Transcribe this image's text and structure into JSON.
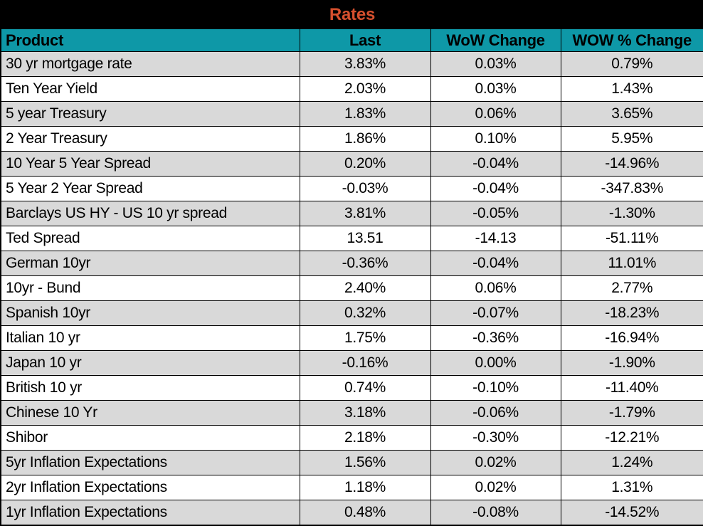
{
  "title": "Rates",
  "chart_data": {
    "type": "table",
    "title": "Rates",
    "columns": [
      "Product",
      "Last",
      "WoW Change",
      "WOW % Change"
    ],
    "rows": [
      [
        "30 yr mortgage rate",
        "3.83%",
        "0.03%",
        "0.79%"
      ],
      [
        "Ten Year Yield",
        "2.03%",
        "0.03%",
        "1.43%"
      ],
      [
        "5 year Treasury",
        "1.83%",
        "0.06%",
        "3.65%"
      ],
      [
        "2 Year Treasury",
        "1.86%",
        "0.10%",
        "5.95%"
      ],
      [
        "10 Year 5 Year Spread",
        "0.20%",
        "-0.04%",
        "-14.96%"
      ],
      [
        "5 Year 2 Year Spread",
        "-0.03%",
        "-0.04%",
        "-347.83%"
      ],
      [
        "Barclays US HY - US 10 yr spread",
        "3.81%",
        "-0.05%",
        "-1.30%"
      ],
      [
        "Ted Spread",
        "13.51",
        "-14.13",
        "-51.11%"
      ],
      [
        "German 10yr",
        "-0.36%",
        "-0.04%",
        "11.01%"
      ],
      [
        "10yr - Bund",
        "2.40%",
        "0.06%",
        "2.77%"
      ],
      [
        "Spanish 10yr",
        "0.32%",
        "-0.07%",
        "-18.23%"
      ],
      [
        "Italian 10 yr",
        "1.75%",
        "-0.36%",
        "-16.94%"
      ],
      [
        "Japan 10 yr",
        "-0.16%",
        "0.00%",
        "-1.90%"
      ],
      [
        "British 10 yr",
        "0.74%",
        "-0.10%",
        "-11.40%"
      ],
      [
        "Chinese 10 Yr",
        "3.18%",
        "-0.06%",
        "-1.79%"
      ],
      [
        "Shibor",
        "2.18%",
        "-0.30%",
        "-12.21%"
      ],
      [
        "5yr Inflation Expectations",
        "1.56%",
        "0.02%",
        "1.24%"
      ],
      [
        "2yr Inflation Expectations",
        "1.18%",
        "0.02%",
        "1.31%"
      ],
      [
        "1yr Inflation Expectations",
        "0.48%",
        "-0.08%",
        "-14.52%"
      ]
    ]
  },
  "colors": {
    "title_bg": "#000000",
    "title_text": "#d6502e",
    "header_bg": "#0e98a7",
    "header_text": "#000000",
    "row_bg": "#ffffff",
    "row_alt_bg": "#d9d9d9",
    "border": "#000000"
  }
}
